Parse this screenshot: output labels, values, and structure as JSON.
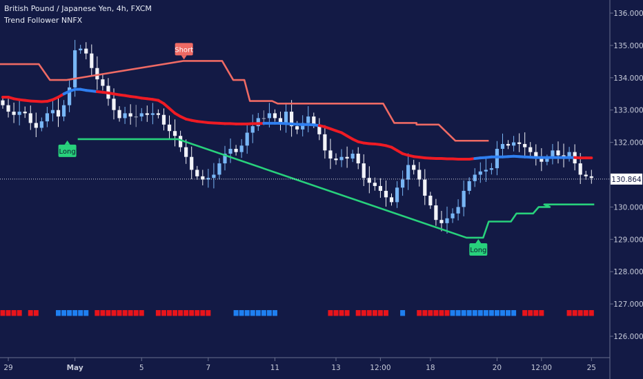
{
  "header": {
    "title": "British Pound / Japanese Yen, 4h, FXCM",
    "indicator": "Trend Follower NNFX"
  },
  "colors": {
    "background": "#131a45",
    "bull_candle": "#78b6f5",
    "bear_candle": "#f2f3f8",
    "neutral_candle": "#9aa0b6",
    "baseline_red": "#ef1b24",
    "baseline_blue": "#2f7ff0",
    "upper_band": "#ef6a64",
    "lower_band": "#28d17c",
    "marker_red": "#e8141b",
    "marker_blue": "#1f7ff0",
    "last_price_tag": "#ffffff"
  },
  "chart_data": {
    "type": "candlestick",
    "title": "British Pound / Japanese Yen, 4h, FXCM",
    "ylim": [
      125.6,
      136.25
    ],
    "x_tick_labels": [
      {
        "index": 1,
        "label": "29"
      },
      {
        "index": 13,
        "label": "May"
      },
      {
        "index": 25,
        "label": "5"
      },
      {
        "index": 37,
        "label": "7"
      },
      {
        "index": 49,
        "label": "11"
      },
      {
        "index": 60,
        "label": "13"
      },
      {
        "index": 68,
        "label": "12:00"
      },
      {
        "index": 77,
        "label": "18"
      },
      {
        "index": 89,
        "label": "20"
      },
      {
        "index": 97,
        "label": "12:00"
      },
      {
        "index": 106,
        "label": "25"
      }
    ],
    "y_tick_labels": [
      {
        "value": 136.0,
        "label": "136.000"
      },
      {
        "value": 135.0,
        "label": "135.000"
      },
      {
        "value": 134.0,
        "label": "134.000"
      },
      {
        "value": 133.0,
        "label": "133.000"
      },
      {
        "value": 132.0,
        "label": "132.000"
      },
      {
        "value": 130.0,
        "label": "130.000"
      },
      {
        "value": 129.0,
        "label": "129.000"
      },
      {
        "value": 128.0,
        "label": "128.000"
      },
      {
        "value": 127.0,
        "label": "127.000"
      },
      {
        "value": 126.0,
        "label": "126.000"
      }
    ],
    "last_price": {
      "value": 130.864,
      "label": "130.864"
    },
    "closes": [
      133.15,
      132.95,
      132.85,
      132.95,
      132.9,
      132.6,
      132.45,
      132.65,
      132.9,
      133.0,
      132.8,
      133.15,
      133.7,
      134.85,
      134.9,
      134.75,
      134.3,
      133.95,
      133.75,
      133.35,
      133.0,
      132.75,
      132.9,
      132.8,
      132.8,
      132.9,
      132.85,
      132.9,
      132.85,
      132.55,
      132.35,
      132.2,
      131.85,
      131.55,
      131.15,
      130.95,
      130.85,
      130.9,
      131.0,
      131.35,
      131.65,
      131.8,
      131.7,
      131.9,
      132.3,
      132.5,
      132.75,
      132.75,
      132.9,
      132.75,
      132.55,
      132.95,
      132.5,
      132.4,
      132.6,
      132.8,
      132.55,
      132.25,
      131.75,
      131.5,
      131.45,
      131.55,
      131.5,
      131.65,
      131.35,
      130.9,
      130.75,
      130.65,
      130.5,
      130.3,
      130.15,
      130.6,
      130.85,
      131.3,
      131.15,
      130.85,
      130.35,
      130.05,
      129.6,
      129.5,
      129.65,
      129.8,
      130.0,
      130.5,
      130.8,
      131.0,
      131.1,
      131.15,
      131.2,
      131.8,
      131.95,
      131.9,
      132.0,
      131.95,
      131.85,
      131.7,
      131.5,
      131.4,
      131.5,
      131.75,
      131.6,
      131.55,
      131.7,
      131.35,
      131.0,
      130.95,
      130.9
    ],
    "baseline": {
      "values": [
        133.4,
        133.4,
        133.35,
        133.32,
        133.3,
        133.28,
        133.27,
        133.26,
        133.27,
        133.32,
        133.4,
        133.5,
        133.58,
        133.64,
        133.64,
        133.61,
        133.59,
        133.57,
        133.55,
        133.53,
        133.5,
        133.47,
        133.45,
        133.42,
        133.4,
        133.37,
        133.35,
        133.33,
        133.3,
        133.2,
        133.05,
        132.9,
        132.8,
        132.72,
        132.68,
        132.65,
        132.63,
        132.61,
        132.6,
        132.59,
        132.58,
        132.58,
        132.57,
        132.57,
        132.57,
        132.58,
        132.58,
        132.59,
        132.59,
        132.59,
        132.59,
        132.58,
        132.57,
        132.56,
        132.55,
        132.55,
        132.54,
        132.52,
        132.48,
        132.42,
        132.36,
        132.3,
        132.2,
        132.1,
        132.02,
        131.98,
        131.96,
        131.95,
        131.93,
        131.9,
        131.85,
        131.75,
        131.65,
        131.6,
        131.56,
        131.54,
        131.52,
        131.51,
        131.5,
        131.5,
        131.49,
        131.49,
        131.48,
        131.48,
        131.48,
        131.5,
        131.52,
        131.53,
        131.55,
        131.55,
        131.55,
        131.56,
        131.57,
        131.56,
        131.55,
        131.54,
        131.53,
        131.53,
        131.53,
        131.53,
        131.53,
        131.53,
        131.53,
        131.53,
        131.52,
        131.52,
        131.52
      ],
      "trend": [
        "r",
        "r",
        "r",
        "r",
        "r",
        "r",
        "r",
        "r",
        "r",
        "r",
        "r",
        "b",
        "b",
        "b",
        "b",
        "b",
        "b",
        "r",
        "r",
        "r",
        "r",
        "r",
        "r",
        "r",
        "r",
        "r",
        "r",
        "r",
        "r",
        "r",
        "r",
        "r",
        "r",
        "r",
        "r",
        "r",
        "r",
        "r",
        "r",
        "r",
        "r",
        "r",
        "r",
        "r",
        "r",
        "r",
        "r",
        "b",
        "b",
        "b",
        "b",
        "b",
        "b",
        "b",
        "b",
        "b",
        "b",
        "r",
        "r",
        "r",
        "r",
        "r",
        "r",
        "r",
        "r",
        "r",
        "r",
        "r",
        "r",
        "r",
        "r",
        "r",
        "r",
        "r",
        "r",
        "r",
        "r",
        "r",
        "r",
        "r",
        "r",
        "r",
        "r",
        "r",
        "r",
        "b",
        "b",
        "b",
        "b",
        "b",
        "b",
        "b",
        "b",
        "b",
        "b",
        "b",
        "b",
        "b",
        "b",
        "b",
        "b",
        "b",
        "b",
        "r",
        "r",
        "r",
        "r"
      ]
    },
    "upper_band": {
      "segments": [
        {
          "start": 0,
          "end": 6,
          "value": 134.42
        },
        {
          "start": 9,
          "end": 11,
          "value": 133.93
        },
        {
          "start": 33,
          "end": 39,
          "value": 134.52
        },
        {
          "start": 42,
          "end": 43,
          "value": 133.93
        },
        {
          "start": 45,
          "end": 48,
          "value": 133.28
        },
        {
          "start": 50,
          "end": 68,
          "value": 133.2
        },
        {
          "start": 71,
          "end": 74,
          "value": 132.6
        },
        {
          "start": 75,
          "end": 78,
          "value": 132.55
        },
        {
          "start": 82,
          "end": 87,
          "value": 132.05
        }
      ]
    },
    "lower_band": {
      "segments": [
        {
          "start": 14,
          "end": 31,
          "value": 132.1
        },
        {
          "start": 84,
          "end": 86,
          "value": 129.05
        },
        {
          "start": 88,
          "end": 91,
          "value": 129.55
        },
        {
          "start": 93,
          "end": 95,
          "value": 129.8
        },
        {
          "start": 97,
          "end": 98,
          "value": 130.0
        },
        {
          "start": 98,
          "end": 106,
          "value": 130.08
        }
      ]
    },
    "signals": [
      {
        "type": "Short",
        "index": 33,
        "value": 134.52,
        "label": "Short"
      },
      {
        "type": "Long",
        "index": 12,
        "value": 132.1,
        "label": "Long"
      },
      {
        "type": "Long",
        "index": 86,
        "value": 129.05,
        "label": "Long"
      }
    ],
    "marker_row": {
      "value": 126.72,
      "colors": [
        "r",
        "r",
        "r",
        "r",
        "",
        "r",
        "r",
        "",
        "",
        "",
        "b",
        "b",
        "b",
        "b",
        "b",
        "b",
        "",
        "r",
        "r",
        "r",
        "r",
        "r",
        "r",
        "r",
        "r",
        "r",
        "",
        "",
        "r",
        "r",
        "r",
        "r",
        "r",
        "r",
        "r",
        "r",
        "r",
        "r",
        "",
        "",
        "",
        "",
        "b",
        "b",
        "b",
        "b",
        "b",
        "b",
        "b",
        "b",
        "",
        "",
        "",
        "",
        "",
        "",
        "",
        "",
        "",
        "r",
        "r",
        "r",
        "r",
        "",
        "r",
        "r",
        "r",
        "r",
        "r",
        "r",
        "",
        "",
        "b",
        "",
        "",
        "r",
        "r",
        "r",
        "r",
        "r",
        "r",
        "b",
        "b",
        "b",
        "b",
        "b",
        "b",
        "b",
        "b",
        "b",
        "b",
        "b",
        "b",
        "",
        "r",
        "r",
        "r",
        "r",
        "",
        "",
        "",
        "",
        "r",
        "r",
        "r",
        "r",
        "r"
      ]
    }
  }
}
